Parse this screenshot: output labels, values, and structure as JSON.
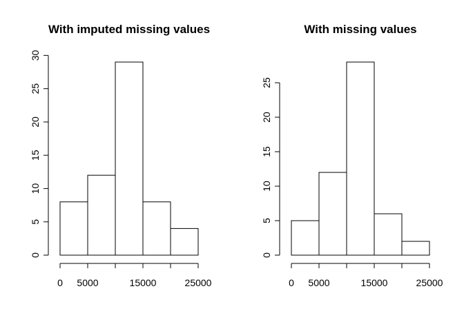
{
  "chart_data": [
    {
      "type": "histogram",
      "title": "With imputed missing values",
      "bins": [
        0,
        5000,
        10000,
        15000,
        20000,
        25000
      ],
      "values": [
        8,
        12,
        29,
        8,
        4
      ],
      "color": "#ffffff",
      "edgecolor": "#000000",
      "xlim": [
        0,
        25000
      ],
      "xticks": [
        0,
        5000,
        15000,
        25000
      ],
      "ylim": [
        0,
        29
      ],
      "yticks": [
        0,
        5,
        10,
        15,
        20,
        25,
        30
      ]
    },
    {
      "type": "histogram",
      "title": "With missing values",
      "bins": [
        0,
        5000,
        10000,
        15000,
        20000,
        25000
      ],
      "values": [
        5,
        12,
        28,
        6,
        2
      ],
      "color": "#ffffff",
      "edgecolor": "#000000",
      "xlim": [
        0,
        25000
      ],
      "xticks": [
        0,
        5000,
        15000,
        25000
      ],
      "ylim": [
        0,
        28
      ],
      "yticks": [
        0,
        5,
        10,
        15,
        20,
        25
      ]
    }
  ]
}
